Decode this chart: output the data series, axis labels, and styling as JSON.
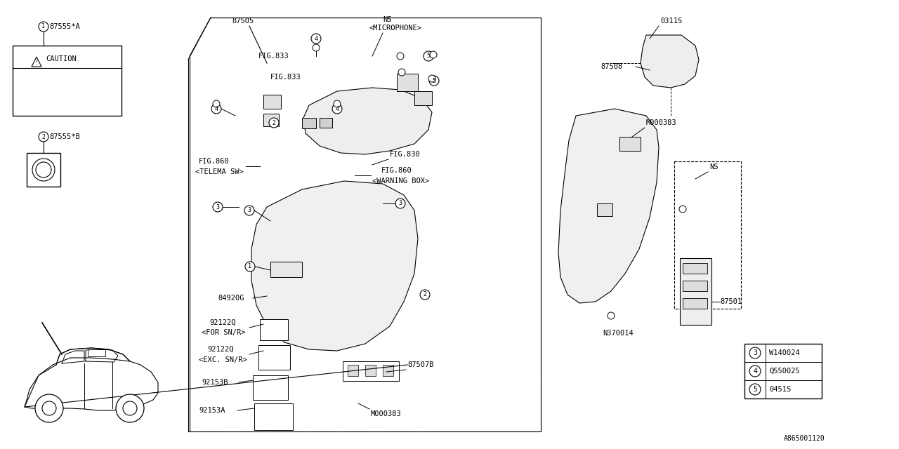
{
  "bg_color": "#ffffff",
  "line_color": "#000000",
  "diagram_code": "A865001120",
  "legend": [
    {
      "num": "3",
      "code": "W140024"
    },
    {
      "num": "4",
      "code": "Q550025"
    },
    {
      "num": "5",
      "code": "0451S"
    }
  ]
}
